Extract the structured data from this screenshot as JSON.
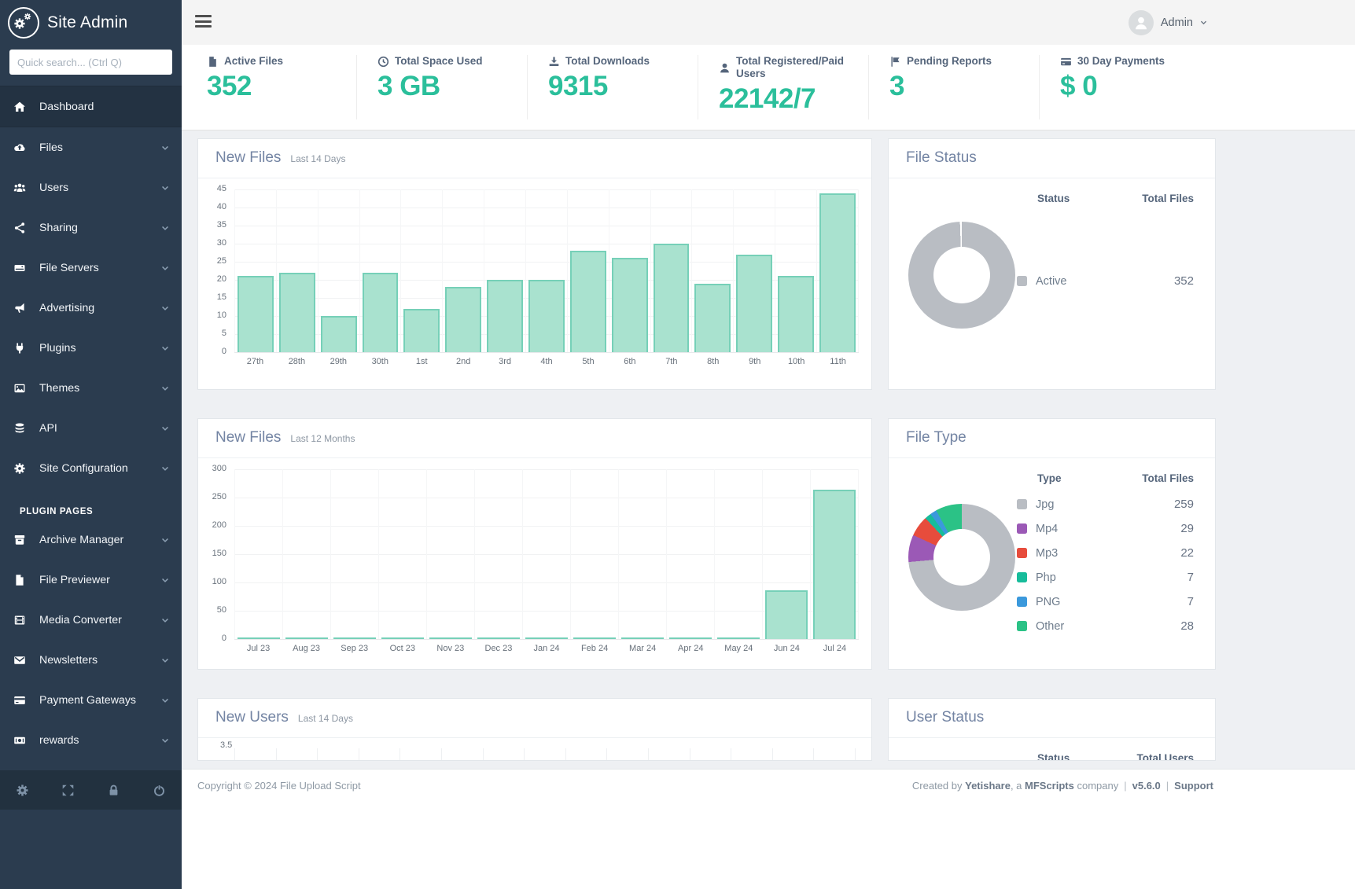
{
  "brand": {
    "title": "Site Admin"
  },
  "sidebar": {
    "search_placeholder": "Quick search... (Ctrl Q)",
    "section_label": "PLUGIN PAGES",
    "items": [
      {
        "label": "Dashboard",
        "icon": "home",
        "active": true,
        "expandable": false
      },
      {
        "label": "Files",
        "icon": "cloud-upload",
        "expandable": true
      },
      {
        "label": "Users",
        "icon": "users",
        "expandable": true
      },
      {
        "label": "Sharing",
        "icon": "share",
        "expandable": true
      },
      {
        "label": "File Servers",
        "icon": "server",
        "expandable": true
      },
      {
        "label": "Advertising",
        "icon": "megaphone",
        "expandable": true
      },
      {
        "label": "Plugins",
        "icon": "plug",
        "expandable": true
      },
      {
        "label": "Themes",
        "icon": "image",
        "expandable": true
      },
      {
        "label": "API",
        "icon": "database",
        "expandable": true
      },
      {
        "label": "Site Configuration",
        "icon": "gear",
        "expandable": true
      }
    ],
    "plugin_items": [
      {
        "label": "Archive Manager",
        "icon": "archive",
        "expandable": true
      },
      {
        "label": "File Previewer",
        "icon": "file",
        "expandable": true
      },
      {
        "label": "Media Converter",
        "icon": "film",
        "expandable": true
      },
      {
        "label": "Newsletters",
        "icon": "envelope",
        "expandable": true
      },
      {
        "label": "Payment Gateways",
        "icon": "credit-card",
        "expandable": true
      },
      {
        "label": "rewards",
        "icon": "money",
        "expandable": true
      }
    ],
    "footer_icons": [
      {
        "name": "settings",
        "icon": "gear"
      },
      {
        "name": "fullscreen",
        "icon": "expand"
      },
      {
        "name": "lock-screen",
        "icon": "lock"
      },
      {
        "name": "power",
        "icon": "power"
      }
    ]
  },
  "header": {
    "admin_label": "Admin"
  },
  "stats": [
    {
      "icon": "file",
      "label": "Active Files",
      "value": "352"
    },
    {
      "icon": "clock",
      "label": "Total Space Used",
      "value": "3 GB"
    },
    {
      "icon": "download",
      "label": "Total Downloads",
      "value": "9315"
    },
    {
      "icon": "user",
      "label": "Total Registered/Paid Users",
      "value": "22142/7"
    },
    {
      "icon": "flag",
      "label": "Pending Reports",
      "value": "3"
    },
    {
      "icon": "credit-card",
      "label": "30 Day Payments",
      "value": "$ 0"
    }
  ],
  "cards": {
    "new_files_14": {
      "title": "New Files",
      "subtitle": "Last 14 Days"
    },
    "file_status": {
      "title": "File Status",
      "columns": [
        "Status",
        "Total Files"
      ]
    },
    "new_files_12": {
      "title": "New Files",
      "subtitle": "Last 12 Months"
    },
    "file_type": {
      "title": "File Type",
      "columns": [
        "Type",
        "Total Files"
      ]
    },
    "new_users": {
      "title": "New Users",
      "subtitle": "Last 14 Days",
      "visible_y_tick": "3.5"
    },
    "user_status": {
      "title": "User Status",
      "columns": [
        "Status",
        "Total Users"
      ]
    }
  },
  "chart_data": [
    {
      "id": "new_files_14",
      "type": "bar",
      "title": "New Files",
      "subtitle": "Last 14 Days",
      "categories": [
        "27th",
        "28th",
        "29th",
        "30th",
        "1st",
        "2nd",
        "3rd",
        "4th",
        "5th",
        "6th",
        "7th",
        "8th",
        "9th",
        "10th",
        "11th"
      ],
      "values": [
        21,
        22,
        10,
        22,
        12,
        18,
        20,
        20,
        28,
        26,
        30,
        19,
        27,
        21,
        44
      ],
      "ylim": [
        0,
        45
      ],
      "ytick_step": 5,
      "grid": true,
      "legend": "none",
      "bar_fill": "#a9e2cf",
      "bar_border": "#76d0b8"
    },
    {
      "id": "file_status",
      "type": "pie",
      "donut": true,
      "title": "File Status",
      "segments": [
        {
          "label": "Active",
          "value": 352,
          "color": "#b9bdc3"
        }
      ]
    },
    {
      "id": "new_files_12",
      "type": "bar",
      "title": "New Files",
      "subtitle": "Last 12 Months",
      "categories": [
        "Jul 23",
        "Aug 23",
        "Sep 23",
        "Oct 23",
        "Nov 23",
        "Dec 23",
        "Jan 24",
        "Feb 24",
        "Mar 24",
        "Apr 24",
        "May 24",
        "Jun 24",
        "Jul 24"
      ],
      "values": [
        2,
        2,
        2,
        2,
        2,
        2,
        2,
        2,
        2,
        2,
        2,
        86,
        264
      ],
      "ylim": [
        0,
        300
      ],
      "ytick_step": 50,
      "grid": true,
      "legend": "none",
      "bar_fill": "#a9e2cf",
      "bar_border": "#76d0b8"
    },
    {
      "id": "file_type",
      "type": "pie",
      "donut": true,
      "title": "File Type",
      "segments": [
        {
          "label": "Jpg",
          "value": 259,
          "color": "#b9bdc3"
        },
        {
          "label": "Mp4",
          "value": 29,
          "color": "#9b59b6"
        },
        {
          "label": "Mp3",
          "value": 22,
          "color": "#e74c3c"
        },
        {
          "label": "Php",
          "value": 7,
          "color": "#17bc9b"
        },
        {
          "label": "PNG",
          "value": 7,
          "color": "#3b99dc"
        },
        {
          "label": "Other",
          "value": 28,
          "color": "#2bc286"
        }
      ]
    },
    {
      "id": "new_users",
      "type": "bar",
      "title": "New Users",
      "subtitle": "Last 14 Days",
      "partially_visible": true,
      "visible_y_ticks": [
        "3.5"
      ],
      "categories": [],
      "values": []
    }
  ],
  "footer": {
    "copyright": "Copyright © 2024 File Upload Script",
    "created_prefix": "Created by ",
    "vendor": "Yetishare",
    "mid1": ", a ",
    "company": "MFScripts",
    "mid2": " company",
    "divider": "|",
    "version": "v5.6.0",
    "support": "Support"
  },
  "colors": {
    "accent_green": "#2bbf9b",
    "sidebar_bg": "#2b3c4f",
    "bar_fill": "#a9e2cf",
    "bar_border": "#76d0b8",
    "donut_gray": "#b9bdc3"
  }
}
